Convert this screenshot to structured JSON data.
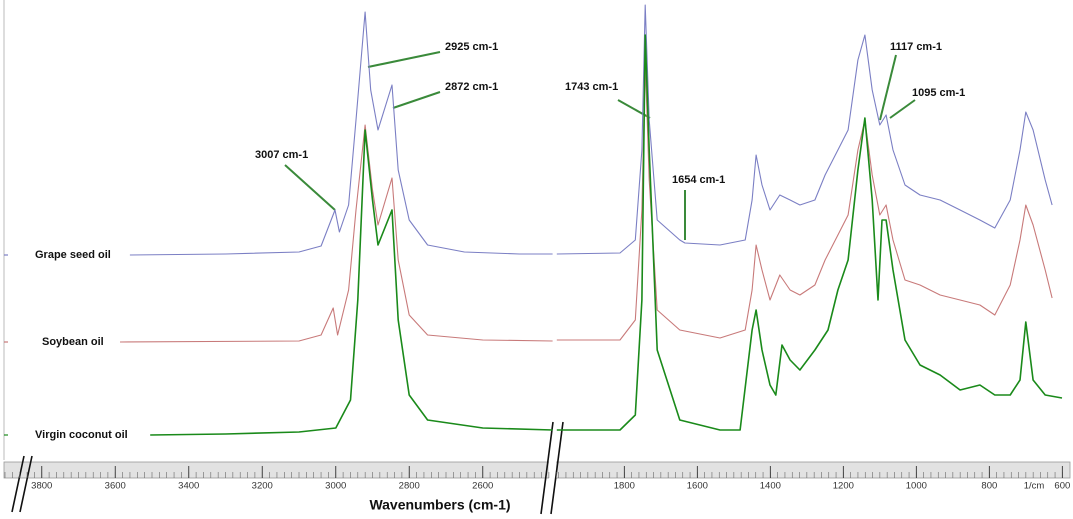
{
  "chart_data": {
    "type": "line",
    "x_label": "Wavenumbers (cm-1)",
    "x_unit_label": "1/cm",
    "ylim": [
      0,
      460
    ],
    "panels": [
      {
        "xlim": [
          3900,
          2400
        ],
        "xticks": [
          3800,
          3600,
          3400,
          3200,
          3000,
          2800,
          2600
        ]
      },
      {
        "xlim": [
          1990,
          600
        ],
        "xticks": [
          1800,
          1600,
          1400,
          1200,
          1000,
          800,
          600
        ]
      }
    ],
    "series": [
      {
        "name": "Grape seed oil",
        "color": "#7b7fc4",
        "x": [
          3560,
          3300,
          3100,
          3040,
          3002,
          2990,
          2965,
          2945,
          2920,
          2905,
          2885,
          2847,
          2830,
          2800,
          2750,
          2650,
          2500,
          2410,
          1985,
          1812,
          1770,
          1752,
          1743,
          1732,
          1710,
          1648,
          1634,
          1538,
          1469,
          1450,
          1439,
          1423,
          1401,
          1374,
          1346,
          1319,
          1278,
          1250,
          1215,
          1187,
          1160,
          1141,
          1121,
          1100,
          1083,
          1064,
          1031,
          990,
          935,
          880,
          826,
          785,
          743,
          716,
          700,
          680,
          647,
          628
        ],
        "values": [
          205,
          206,
          208,
          214,
          250,
          228,
          255,
          340,
          448,
          370,
          330,
          375,
          290,
          240,
          215,
          208,
          206,
          206,
          206,
          207,
          220,
          310,
          455,
          340,
          240,
          220,
          217,
          215,
          220,
          260,
          305,
          275,
          250,
          265,
          260,
          255,
          260,
          285,
          310,
          330,
          400,
          425,
          370,
          335,
          345,
          310,
          275,
          265,
          260,
          250,
          240,
          232,
          260,
          310,
          348,
          330,
          280,
          255
        ]
      },
      {
        "name": "Soybean oil",
        "color": "#c87a7a",
        "x": [
          3587,
          3100,
          3040,
          3007,
          2995,
          2965,
          2945,
          2920,
          2900,
          2885,
          2847,
          2830,
          2800,
          2750,
          2600,
          2410,
          1985,
          1812,
          1770,
          1752,
          1743,
          1732,
          1710,
          1648,
          1538,
          1469,
          1450,
          1439,
          1423,
          1401,
          1374,
          1346,
          1319,
          1278,
          1250,
          1215,
          1187,
          1160,
          1141,
          1121,
          1100,
          1083,
          1064,
          1031,
          990,
          935,
          880,
          826,
          785,
          743,
          716,
          700,
          680,
          647,
          628
        ],
        "values": [
          118,
          119,
          125,
          152,
          125,
          170,
          250,
          335,
          270,
          235,
          282,
          200,
          145,
          125,
          120,
          119,
          120,
          120,
          140,
          250,
          400,
          280,
          150,
          130,
          122,
          130,
          170,
          215,
          190,
          160,
          185,
          170,
          165,
          175,
          200,
          225,
          245,
          310,
          340,
          285,
          245,
          255,
          220,
          180,
          175,
          165,
          160,
          155,
          145,
          175,
          220,
          255,
          235,
          190,
          162
        ]
      },
      {
        "name": "Virgin coconut oil",
        "color": "#1a8a1a",
        "x": [
          3505,
          3300,
          3100,
          3000,
          2960,
          2940,
          2920,
          2900,
          2885,
          2847,
          2830,
          2800,
          2750,
          2600,
          2410,
          1985,
          1812,
          1770,
          1752,
          1743,
          1732,
          1710,
          1648,
          1538,
          1483,
          1450,
          1439,
          1423,
          1401,
          1385,
          1368,
          1346,
          1319,
          1278,
          1242,
          1215,
          1187,
          1160,
          1141,
          1121,
          1105,
          1094,
          1083,
          1064,
          1031,
          990,
          935,
          880,
          826,
          785,
          743,
          716,
          700,
          680,
          647,
          601
        ],
        "values": [
          25,
          26,
          28,
          32,
          60,
          160,
          330,
          260,
          215,
          250,
          140,
          65,
          40,
          32,
          30,
          30,
          30,
          45,
          160,
          425,
          310,
          110,
          40,
          30,
          30,
          130,
          150,
          110,
          75,
          65,
          115,
          100,
          90,
          110,
          130,
          170,
          200,
          290,
          342,
          260,
          160,
          240,
          240,
          190,
          120,
          95,
          85,
          70,
          75,
          65,
          65,
          80,
          138,
          80,
          65,
          62
        ]
      }
    ],
    "annotations": [
      "2925 cm-1",
      "2872 cm-1",
      "3007 cm-1",
      "1743 cm-1",
      "1654 cm-1",
      "1117 cm-1",
      "1095 cm-1"
    ]
  }
}
